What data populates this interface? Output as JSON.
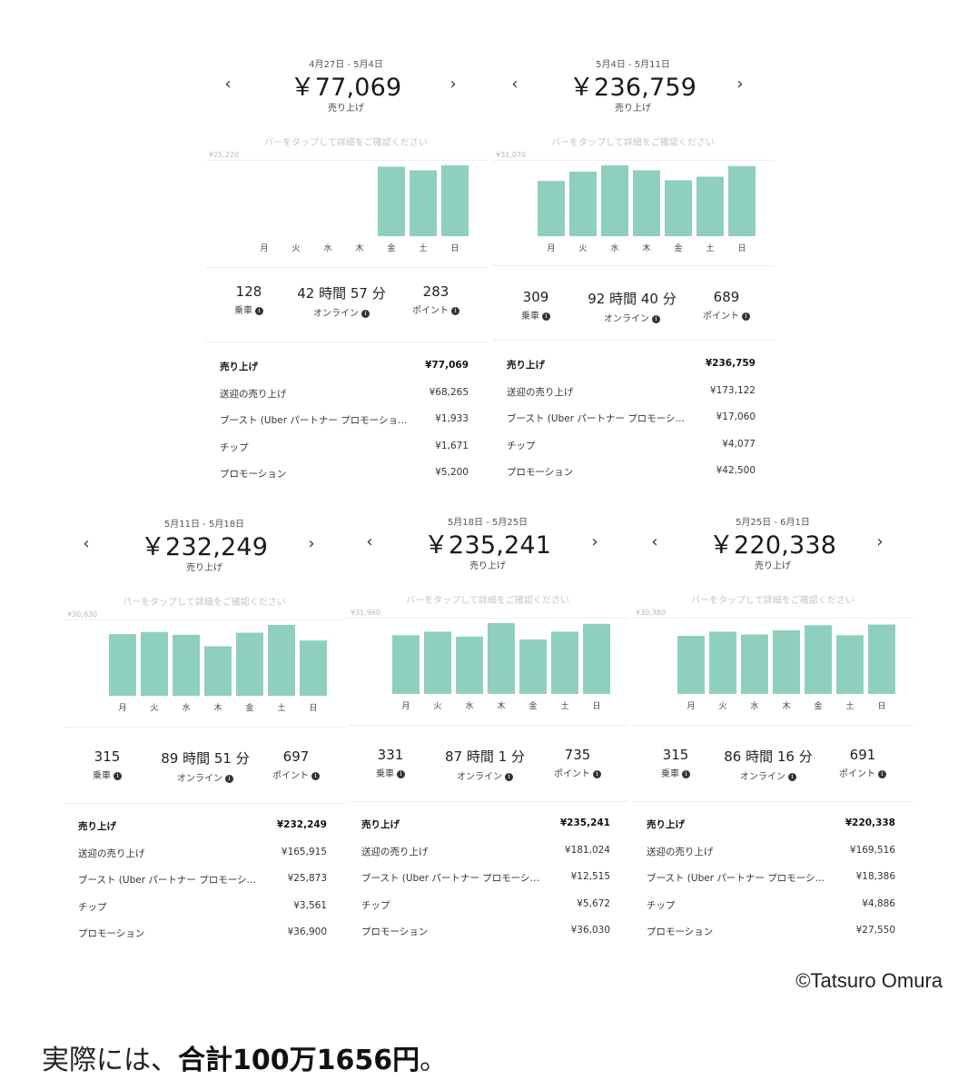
{
  "colors": {
    "bar": "#8fcfbf",
    "text": "#222222",
    "hint": "#c4c4c4"
  },
  "icons": {
    "prev": "chevron-left-icon",
    "next": "chevron-right-icon",
    "info": "info-icon"
  },
  "cards": [
    {
      "date_range": "4月27日 - 5月4日",
      "total": "￥77,069",
      "caption": "売り上げ",
      "hint": "バーをタップして詳細をご確認ください",
      "chart_max": "¥25,220",
      "days": [
        "月",
        "火",
        "水",
        "木",
        "金",
        "土",
        "日"
      ],
      "bars": [
        0,
        0,
        0,
        0,
        0.98,
        0.93,
        1.0
      ],
      "stats": [
        {
          "value": "128",
          "label": "乗車"
        },
        {
          "value": "42 時間 57 分",
          "label": "オンライン"
        },
        {
          "value": "283",
          "label": "ポイント"
        }
      ],
      "rows": [
        {
          "label": "売り上げ",
          "value": "¥77,069"
        },
        {
          "label": "送迎の売り上げ",
          "value": "¥68,265"
        },
        {
          "label": "ブースト (Uber パートナー プロモーショ…",
          "value": "¥1,933"
        },
        {
          "label": "チップ",
          "value": "¥1,671"
        },
        {
          "label": "プロモーション",
          "value": "¥5,200"
        }
      ]
    },
    {
      "date_range": "5月4日 - 5月11日",
      "total": "￥236,759",
      "caption": "売り上げ",
      "hint": "バーをタップして詳細をご確認ください",
      "chart_max": "¥31,070",
      "days": [
        "月",
        "火",
        "水",
        "木",
        "金",
        "土",
        "日"
      ],
      "bars": [
        0.78,
        0.91,
        1.0,
        0.93,
        0.79,
        0.84,
        0.99
      ],
      "stats": [
        {
          "value": "309",
          "label": "乗車"
        },
        {
          "value": "92 時間 40 分",
          "label": "オンライン"
        },
        {
          "value": "689",
          "label": "ポイント"
        }
      ],
      "rows": [
        {
          "label": "売り上げ",
          "value": "¥236,759"
        },
        {
          "label": "送迎の売り上げ",
          "value": "¥173,122"
        },
        {
          "label": "ブースト (Uber パートナー プロモーシ…",
          "value": "¥17,060"
        },
        {
          "label": "チップ",
          "value": "¥4,077"
        },
        {
          "label": "プロモーション",
          "value": "¥42,500"
        }
      ]
    },
    {
      "date_range": "5月11日 - 5月18日",
      "total": "￥232,249",
      "caption": "売り上げ",
      "hint": "バーをタップして詳細をご確認ください",
      "chart_max": "¥30,830",
      "days": [
        "月",
        "火",
        "水",
        "木",
        "金",
        "土",
        "日"
      ],
      "bars": [
        0.87,
        0.9,
        0.86,
        0.7,
        0.89,
        1.0,
        0.78
      ],
      "stats": [
        {
          "value": "315",
          "label": "乗車"
        },
        {
          "value": "89 時間 51 分",
          "label": "オンライン"
        },
        {
          "value": "697",
          "label": "ポイント"
        }
      ],
      "rows": [
        {
          "label": "売り上げ",
          "value": "¥232,249"
        },
        {
          "label": "送迎の売り上げ",
          "value": "¥165,915"
        },
        {
          "label": "ブースト (Uber パートナー プロモーシ…",
          "value": "¥25,873"
        },
        {
          "label": "チップ",
          "value": "¥3,561"
        },
        {
          "label": "プロモーション",
          "value": "¥36,900"
        }
      ]
    },
    {
      "date_range": "5月18日 - 5月25日",
      "total": "￥235,241",
      "caption": "売り上げ",
      "hint": "バーをタップして詳細をご確認ください",
      "chart_max": "¥31,960",
      "days": [
        "月",
        "火",
        "水",
        "木",
        "金",
        "土",
        "日"
      ],
      "bars": [
        0.83,
        0.88,
        0.81,
        1.0,
        0.77,
        0.88,
        0.99
      ],
      "stats": [
        {
          "value": "331",
          "label": "乗車"
        },
        {
          "value": "87 時間 1 分",
          "label": "オンライン"
        },
        {
          "value": "735",
          "label": "ポイント"
        }
      ],
      "rows": [
        {
          "label": "売り上げ",
          "value": "¥235,241"
        },
        {
          "label": "送迎の売り上げ",
          "value": "¥181,024"
        },
        {
          "label": "ブースト (Uber パートナー プロモーシ…",
          "value": "¥12,515"
        },
        {
          "label": "チップ",
          "value": "¥5,672"
        },
        {
          "label": "プロモーション",
          "value": "¥36,030"
        }
      ]
    },
    {
      "date_range": "5月25日 - 6月1日",
      "total": "￥220,338",
      "caption": "売り上げ",
      "hint": "バーをタップして詳細をご確認ください",
      "chart_max": "¥30,380",
      "days": [
        "月",
        "火",
        "水",
        "木",
        "金",
        "土",
        "日"
      ],
      "bars": [
        0.82,
        0.88,
        0.84,
        0.9,
        0.97,
        0.83,
        0.98
      ],
      "stats": [
        {
          "value": "315",
          "label": "乗車"
        },
        {
          "value": "86 時間 16 分",
          "label": "オンライン"
        },
        {
          "value": "691",
          "label": "ポイント"
        }
      ],
      "rows": [
        {
          "label": "売り上げ",
          "value": "¥220,338"
        },
        {
          "label": "送迎の売り上げ",
          "value": "¥169,516"
        },
        {
          "label": "ブースト (Uber パートナー プロモーシ…",
          "value": "¥18,386"
        },
        {
          "label": "チップ",
          "value": "¥4,886"
        },
        {
          "label": "プロモーション",
          "value": "¥27,550"
        }
      ]
    }
  ],
  "credit": "©Tatsuro Omura",
  "footer": {
    "prefix": "実際には、",
    "emphasis": "合計100万1656円",
    "suffix": "。"
  }
}
